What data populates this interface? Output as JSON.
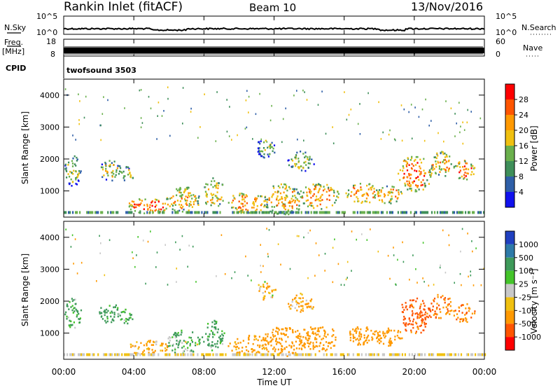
{
  "header": {
    "title": "Rankin Inlet (fitACF)",
    "beam": "Beam 10",
    "date": "13/Nov/2016"
  },
  "strip": {
    "nsky_label": "N.Sky",
    "nsky_ticks": [
      "10^5",
      "10^0"
    ],
    "nsearch_label": "N.Search",
    "nsearch_ticks": [
      "10^5",
      "10^0"
    ],
    "freq_label": "Freq.",
    "freq_unit": "[MHz]",
    "freq_ticks": [
      "18",
      "8"
    ],
    "nave_label": "Nave",
    "nave_ticks": [
      "60",
      "0"
    ],
    "cpid_label": "CPID",
    "cpid_value": "twofsound 3503"
  },
  "panels": {
    "ylabel": "Slant Range [km]",
    "yticks": [
      "4000",
      "3000",
      "2000",
      "1000"
    ],
    "xlabel": "Time UT",
    "xticks": [
      "00:00",
      "04:00",
      "08:00",
      "12:00",
      "16:00",
      "20:00",
      "00:00"
    ]
  },
  "power_scale": {
    "label": "Power [dB]",
    "ticks": [
      "28",
      "24",
      "20",
      "16",
      "12",
      "8",
      "4"
    ],
    "colors": [
      "#ff0000",
      "#ff5500",
      "#ff9900",
      "#f0c010",
      "#6ab04c",
      "#3f8f5a",
      "#2f5fa8",
      "#1111ee"
    ]
  },
  "velocity_scale": {
    "label": "Velocity [m s⁻¹]",
    "ticks": [
      "1000",
      "500",
      "100",
      "25",
      "-25",
      "-100",
      "-500",
      "-1000"
    ],
    "colors": [
      "#2040c0",
      "#2e7aa8",
      "#3e9a5a",
      "#44c42a",
      "#c8c8c8",
      "#f0c010",
      "#ff9900",
      "#ff5500",
      "#ff0000"
    ]
  },
  "chart_data": [
    {
      "type": "heatmap",
      "name": "power",
      "x_range_hours": [
        0,
        24
      ],
      "y_range_km": [
        180,
        4500
      ],
      "blobs": [
        {
          "t": 0.5,
          "r": 1600,
          "dt": 0.6,
          "dr": 600,
          "v": 14
        },
        {
          "t": 2.6,
          "r": 1600,
          "dt": 0.8,
          "dr": 400,
          "v": 16
        },
        {
          "t": 3.5,
          "r": 1500,
          "dt": 0.6,
          "dr": 300,
          "v": 14
        },
        {
          "t": 4.8,
          "r": 500,
          "dt": 1.5,
          "dr": 300,
          "v": 26
        },
        {
          "t": 6.8,
          "r": 700,
          "dt": 1.2,
          "dr": 500,
          "v": 20
        },
        {
          "t": 8.5,
          "r": 900,
          "dt": 0.8,
          "dr": 600,
          "v": 18
        },
        {
          "t": 10.5,
          "r": 600,
          "dt": 1.5,
          "dr": 400,
          "v": 22
        },
        {
          "t": 12.5,
          "r": 700,
          "dt": 1.5,
          "dr": 600,
          "v": 20
        },
        {
          "t": 14.5,
          "r": 800,
          "dt": 1.5,
          "dr": 500,
          "v": 22
        },
        {
          "t": 17.0,
          "r": 900,
          "dt": 1.2,
          "dr": 400,
          "v": 22
        },
        {
          "t": 18.5,
          "r": 850,
          "dt": 1.0,
          "dr": 350,
          "v": 20
        },
        {
          "t": 20.0,
          "r": 1500,
          "dt": 1.2,
          "dr": 700,
          "v": 24
        },
        {
          "t": 21.5,
          "r": 1800,
          "dt": 0.8,
          "dr": 500,
          "v": 20
        },
        {
          "t": 22.8,
          "r": 1600,
          "dt": 0.8,
          "dr": 400,
          "v": 24
        },
        {
          "t": 13.5,
          "r": 1900,
          "dt": 1.0,
          "dr": 400,
          "v": 14
        },
        {
          "t": 11.5,
          "r": 2300,
          "dt": 0.7,
          "dr": 400,
          "v": 12
        }
      ]
    },
    {
      "type": "heatmap",
      "name": "velocity",
      "x_range_hours": [
        0,
        24
      ],
      "y_range_km": [
        180,
        4500
      ],
      "blobs": [
        {
          "t": 0.5,
          "r": 1600,
          "dt": 0.6,
          "dr": 600,
          "v": 150
        },
        {
          "t": 2.6,
          "r": 1600,
          "dt": 0.8,
          "dr": 400,
          "v": 200
        },
        {
          "t": 3.5,
          "r": 1500,
          "dt": 0.6,
          "dr": 300,
          "v": 150
        },
        {
          "t": 4.8,
          "r": 500,
          "dt": 1.5,
          "dr": 300,
          "v": -150
        },
        {
          "t": 6.8,
          "r": 700,
          "dt": 1.2,
          "dr": 500,
          "v": 120
        },
        {
          "t": 8.5,
          "r": 900,
          "dt": 0.8,
          "dr": 600,
          "v": 150
        },
        {
          "t": 10.5,
          "r": 600,
          "dt": 1.5,
          "dr": 400,
          "v": -200
        },
        {
          "t": 12.5,
          "r": 700,
          "dt": 1.5,
          "dr": 600,
          "v": -300
        },
        {
          "t": 14.5,
          "r": 800,
          "dt": 1.5,
          "dr": 500,
          "v": -300
        },
        {
          "t": 17.0,
          "r": 900,
          "dt": 1.2,
          "dr": 400,
          "v": -350
        },
        {
          "t": 18.5,
          "r": 850,
          "dt": 1.0,
          "dr": 350,
          "v": -350
        },
        {
          "t": 20.0,
          "r": 1500,
          "dt": 1.2,
          "dr": 700,
          "v": -600
        },
        {
          "t": 21.5,
          "r": 1800,
          "dt": 0.8,
          "dr": 500,
          "v": -500
        },
        {
          "t": 22.8,
          "r": 1600,
          "dt": 0.8,
          "dr": 400,
          "v": -450
        },
        {
          "t": 13.5,
          "r": 1900,
          "dt": 1.0,
          "dr": 400,
          "v": -150
        },
        {
          "t": 11.5,
          "r": 2300,
          "dt": 0.7,
          "dr": 400,
          "v": -120
        }
      ]
    }
  ]
}
